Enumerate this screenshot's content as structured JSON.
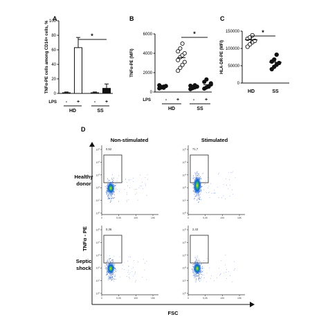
{
  "panels": {
    "A": "A",
    "B": "B",
    "C": "C",
    "D": "D"
  },
  "groups": {
    "hd": "HD",
    "ss": "SS"
  },
  "lps": {
    "label": "LPS",
    "minus": "-",
    "plus": "+"
  },
  "signif": "*",
  "colors": {
    "line": "#111111",
    "bar_fill": "#ffffff",
    "dark_bar": "#111111"
  },
  "chart_data": [
    {
      "type": "bar",
      "panel": "A",
      "ylabel": "TNFα-PE cells among CD14+ cells, %",
      "ylim": [
        0,
        100
      ],
      "yticks": [
        0,
        20,
        40,
        60,
        80,
        100
      ],
      "categories": [
        "HD LPS-",
        "HD LPS+",
        "SS LPS-",
        "SS LPS+"
      ],
      "values": [
        1,
        63,
        1,
        7
      ],
      "errors": [
        1,
        14,
        1,
        6
      ],
      "fills": [
        "white",
        "white",
        "white",
        "black"
      ],
      "significance": {
        "between": [
          "HD LPS+",
          "SS LPS+"
        ],
        "label": "*"
      }
    },
    {
      "type": "scatter",
      "panel": "B",
      "ylabel": "TNFα-PE (MFI)",
      "ylim": [
        0,
        6000
      ],
      "yticks": [
        0,
        2000,
        4000,
        6000
      ],
      "groups": [
        {
          "name": "HD LPS-",
          "points": [
            380,
            480,
            560,
            620,
            700,
            520,
            440
          ],
          "filled": true
        },
        {
          "name": "HD LPS+",
          "points": [
            2200,
            2500,
            2800,
            3100,
            3300,
            3600,
            3800,
            4000,
            4200,
            4500,
            5000
          ],
          "filled": false
        },
        {
          "name": "SS LPS-",
          "points": [
            300,
            400,
            480,
            560,
            650,
            520,
            700
          ],
          "filled": true
        },
        {
          "name": "SS LPS+",
          "points": [
            350,
            480,
            600,
            780,
            1050,
            1300,
            560,
            900
          ],
          "filled": true
        }
      ],
      "significance": {
        "between": [
          "HD LPS+",
          "SS LPS+"
        ],
        "label": "*"
      }
    },
    {
      "type": "scatter",
      "panel": "C",
      "ylabel": "HLA-DR-PE (MFI)",
      "ylim": [
        0,
        150000
      ],
      "yticks": [
        0,
        50000,
        100000,
        150000
      ],
      "groups": [
        {
          "name": "HD",
          "points": [
            105000,
            112000,
            118000,
            122000,
            128000,
            132000,
            138000
          ],
          "filled": false
        },
        {
          "name": "SS",
          "points": [
            40000,
            47000,
            53000,
            58000,
            62000,
            68000,
            82000
          ],
          "filled": true
        }
      ],
      "means": [
        125000,
        60000
      ],
      "significance": {
        "between": [
          "HD",
          "SS"
        ],
        "label": "*"
      }
    },
    {
      "type": "scatter",
      "panel": "D",
      "title_cols": [
        "Non-stimulated",
        "Stimulated"
      ],
      "row_labels": [
        "Healthy\ndonor",
        "Septic\nshock"
      ],
      "xlabel": "FSC",
      "ylabel": "TNFα - PE",
      "gate_values": [
        [
          "0,52",
          "71,7"
        ],
        [
          "0,36",
          "2,43"
        ]
      ],
      "x_ticks": [
        "0",
        "5,0K",
        "10K",
        "15K"
      ],
      "y_ticks": [
        "10^0",
        "10^1",
        "10^2",
        "10^3",
        "10^4",
        "10^5"
      ]
    }
  ]
}
